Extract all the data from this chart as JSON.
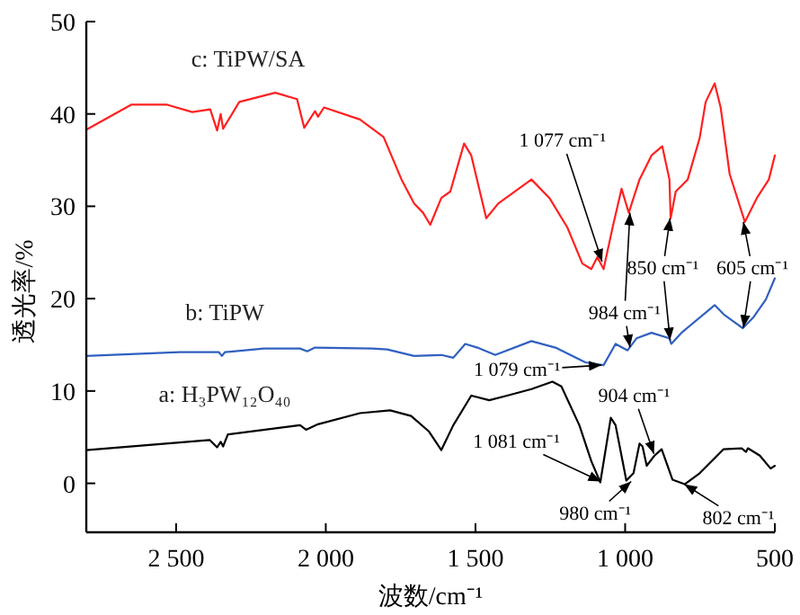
{
  "chart_data": {
    "type": "line",
    "xlabel": "波数/cm⁻¹",
    "ylabel": "透光率/%",
    "xlim": [
      2800,
      500
    ],
    "ylim": [
      -5.3,
      50
    ],
    "xticks": [
      {
        "value": 2500,
        "label": "2 500"
      },
      {
        "value": 2000,
        "label": "2 000"
      },
      {
        "value": 1500,
        "label": "1 500"
      },
      {
        "value": 1000,
        "label": "1 000"
      },
      500
    ],
    "yticks": [
      0,
      10,
      20,
      30,
      40,
      50
    ],
    "grid": false,
    "legend": false,
    "marker": "none",
    "line_style": "solid",
    "series": [
      {
        "name": "c: TiPW/SA",
        "color": "#ff2020",
        "x": [
          2800,
          2650,
          2530,
          2446,
          2386,
          2363,
          2351,
          2343,
          2289,
          2169,
          2096,
          2072,
          2036,
          2026,
          2006,
          1886,
          1807,
          1747,
          1705,
          1675,
          1651,
          1614,
          1584,
          1538,
          1514,
          1464,
          1424,
          1313,
          1253,
          1193,
          1143,
          1113,
          1093,
          1072,
          1042,
          1012,
          988,
          952,
          912,
          876,
          852,
          848,
          831,
          791,
          751,
          731,
          701,
          681,
          651,
          600,
          560,
          520,
          500
        ],
        "values": [
          38.3,
          41.0,
          41.0,
          40.2,
          40.5,
          38.2,
          40.0,
          38.4,
          41.3,
          42.3,
          41.6,
          38.5,
          40.3,
          39.7,
          40.7,
          39.4,
          37.5,
          32.9,
          30.3,
          29.3,
          28.0,
          30.9,
          31.6,
          36.8,
          35.5,
          28.7,
          30.3,
          32.9,
          30.9,
          27.7,
          23.8,
          23.2,
          24.5,
          23.2,
          27.7,
          31.9,
          29.3,
          32.9,
          35.5,
          36.5,
          32.9,
          28.7,
          31.6,
          32.9,
          37.4,
          41.3,
          43.3,
          40.7,
          33.5,
          28.3,
          30.9,
          32.9,
          35.5
        ]
      },
      {
        "name": "b: TiPW",
        "color": "#3060c0",
        "x": [
          2800,
          2488,
          2357,
          2347,
          2337,
          2207,
          2086,
          2062,
          2036,
          1845,
          1795,
          1705,
          1614,
          1574,
          1534,
          1494,
          1434,
          1313,
          1233,
          1133,
          1072,
          1032,
          992,
          962,
          912,
          852,
          846,
          812,
          701,
          671,
          641,
          607,
          571,
          530,
          500
        ],
        "values": [
          13.8,
          14.2,
          14.2,
          13.8,
          14.2,
          14.6,
          14.6,
          14.3,
          14.7,
          14.6,
          14.5,
          13.8,
          13.9,
          13.6,
          15.1,
          14.7,
          13.9,
          15.4,
          14.7,
          13.1,
          12.8,
          15.1,
          14.4,
          15.7,
          16.3,
          15.7,
          15.1,
          16.3,
          19.3,
          18.3,
          17.6,
          16.8,
          18.0,
          19.9,
          22.2
        ]
      },
      {
        "name": "a: H₃PW₁₂O₄₀",
        "color": "#000000",
        "x": [
          2800,
          2388,
          2363,
          2351,
          2343,
          2327,
          2086,
          2066,
          2026,
          1886,
          1785,
          1715,
          1655,
          1614,
          1574,
          1514,
          1454,
          1394,
          1313,
          1243,
          1213,
          1153,
          1113,
          1083,
          1048,
          1032,
          996,
          972,
          952,
          942,
          928,
          902,
          878,
          842,
          801,
          751,
          671,
          611,
          596,
          590,
          550,
          514,
          500
        ],
        "values": [
          3.6,
          4.7,
          3.9,
          4.5,
          4.0,
          5.3,
          6.3,
          5.8,
          6.4,
          7.6,
          7.9,
          7.3,
          5.6,
          3.6,
          6.3,
          9.5,
          9.0,
          9.5,
          10.2,
          11.0,
          10.5,
          6.3,
          2.4,
          0.1,
          7.1,
          6.3,
          0.3,
          1.1,
          4.3,
          4.0,
          1.9,
          3.0,
          3.7,
          0.4,
          -0.1,
          1.1,
          3.7,
          3.8,
          3.4,
          3.8,
          3.0,
          1.6,
          1.9
        ]
      }
    ],
    "annotations": [
      {
        "text": "1 077 cm⁻¹",
        "x": 1077,
        "y": 24
      },
      {
        "text": "984 cm⁻¹",
        "x": 984,
        "y": 29.3
      },
      {
        "text": "850 cm⁻¹",
        "x": 850,
        "y": 28.7
      },
      {
        "text": "605 cm⁻¹",
        "x": 605,
        "y": 28.3
      },
      {
        "text": "1 079 cm⁻¹",
        "x": 1079,
        "y": 12.8
      },
      {
        "text": "1 081 cm⁻¹",
        "x": 1081,
        "y": 0.2
      },
      {
        "text": "904 cm⁻¹",
        "x": 904,
        "y": 3.2
      },
      {
        "text": "980 cm⁻¹",
        "x": 980,
        "y": 0.2
      },
      {
        "text": "802 cm⁻¹",
        "x": 802,
        "y": -0.1
      }
    ]
  }
}
